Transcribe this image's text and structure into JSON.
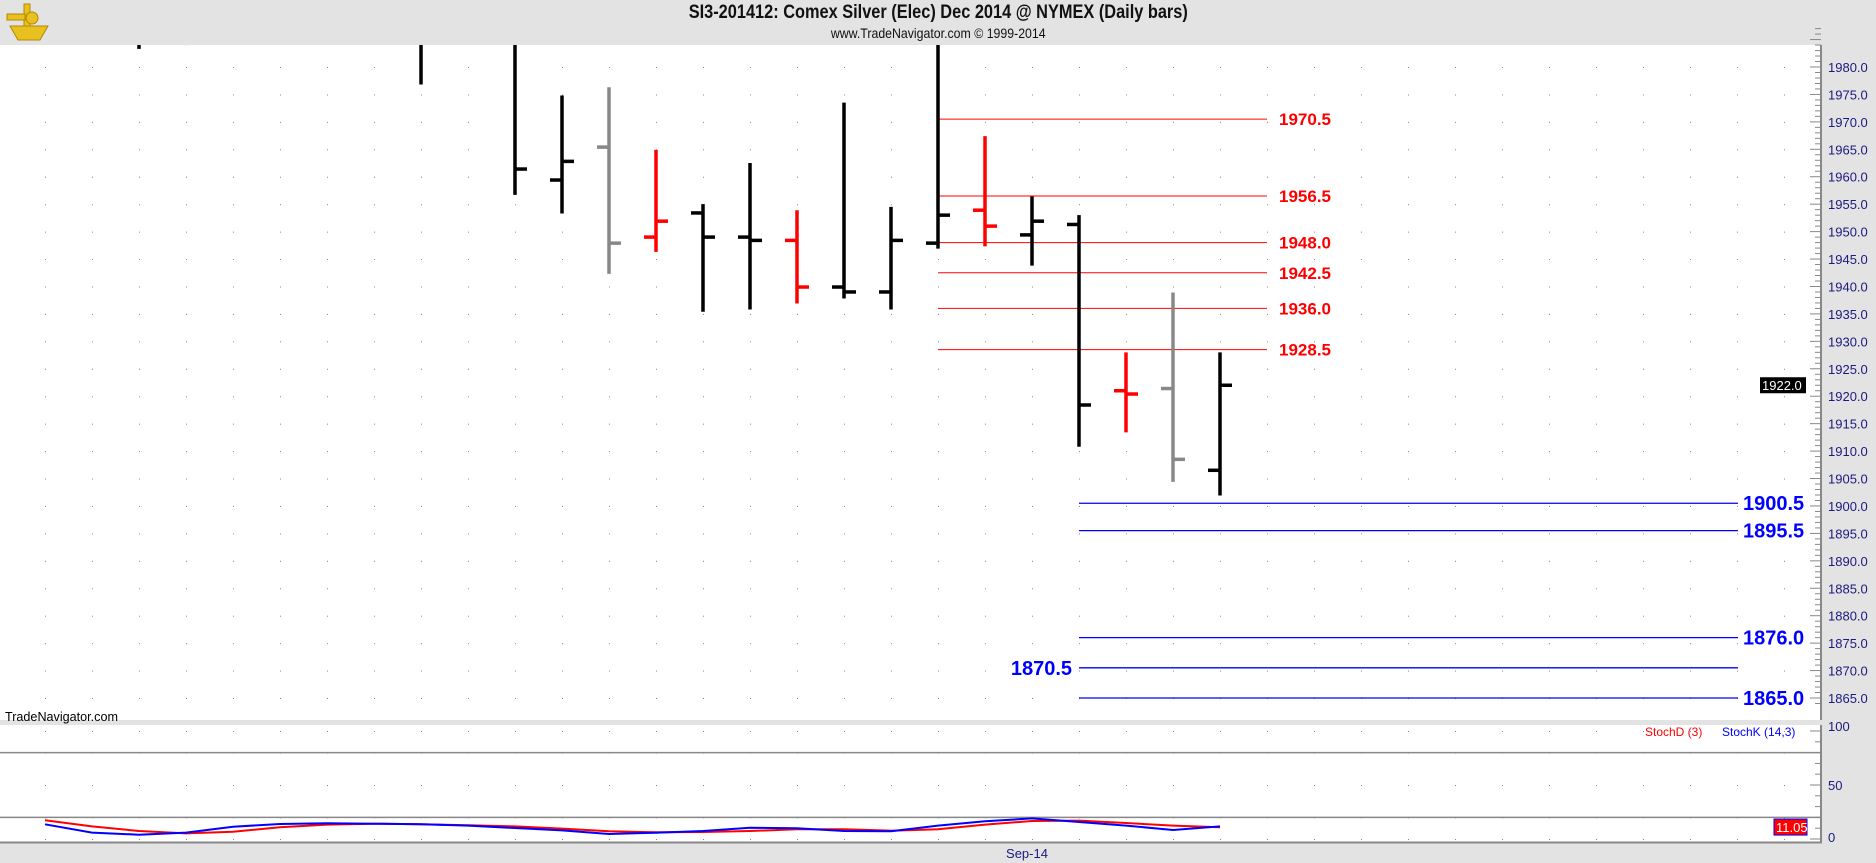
{
  "header": {
    "title": "SI3-201412:  Comex Silver (Elec) Dec 2014 @ NYMEX  (Daily bars)",
    "subtitle": "www.TradeNavigator.com © 1999-2014",
    "logo_icon": "sextant-icon"
  },
  "watermark": "TradeNavigator.com",
  "chart_data": [
    {
      "type": "ohlc-bar",
      "ylim": [
        1862,
        1987
      ],
      "y_ticks": [
        1980,
        1975,
        1970,
        1965,
        1960,
        1955,
        1950,
        1945,
        1940,
        1935,
        1930,
        1925,
        1920,
        1915,
        1910,
        1905,
        1900,
        1895,
        1890,
        1885,
        1880,
        1875,
        1870,
        1865
      ],
      "y_tick_labels": [
        "1980.0",
        "1975.0",
        "1970.0",
        "1965.0",
        "1960.0",
        "1955.0",
        "1950.0",
        "1945.0",
        "1940.0",
        "1935.0",
        "1930.0",
        "1925.0",
        "1920.0",
        "1915.0",
        "1910.0",
        "1905.0",
        "1900.0",
        "1895.0",
        "1890.0",
        "1885.0",
        "1880.0",
        "1875.0",
        "1870.0",
        "1865.0"
      ],
      "last_price": "1922.0",
      "grid": "dotted",
      "colors": {
        "up": "#000000",
        "down": "#ff0000",
        "neutral": "#888888"
      },
      "bars": [
        {
          "o": null,
          "h": 1990,
          "l": 1983.3,
          "c": null,
          "color": "#000000"
        },
        {
          "o": null,
          "h": 1990,
          "l": 1984.0,
          "c": null,
          "color": "#ff0000"
        },
        null,
        null,
        null,
        null,
        {
          "o": null,
          "h": 1990,
          "l": 1976.8,
          "c": null,
          "color": "#000000"
        },
        null,
        {
          "o": null,
          "h": 1990,
          "l": 1956.7,
          "c": 1961.4,
          "color": "#000000"
        },
        {
          "o": 1959.4,
          "h": 1974.8,
          "l": 1953.3,
          "c": 1962.8,
          "color": "#000000"
        },
        {
          "o": 1965.4,
          "h": 1976.3,
          "l": 1942.3,
          "c": 1947.9,
          "color": "#888888"
        },
        {
          "o": 1949.0,
          "h": 1964.9,
          "l": 1946.3,
          "c": 1951.9,
          "color": "#ff0000"
        },
        {
          "o": 1953.4,
          "h": 1955.0,
          "l": 1935.4,
          "c": 1949.0,
          "color": "#000000"
        },
        {
          "o": 1949.0,
          "h": 1962.5,
          "l": 1935.8,
          "c": 1948.4,
          "color": "#000000"
        },
        {
          "o": 1948.4,
          "h": 1953.9,
          "l": 1936.9,
          "c": 1939.9,
          "color": "#ff0000"
        },
        {
          "o": 1939.9,
          "h": 1973.5,
          "l": 1937.8,
          "c": 1939.0,
          "color": "#000000"
        },
        {
          "o": 1939.0,
          "h": 1954.5,
          "l": 1935.8,
          "c": 1948.4,
          "color": "#000000"
        },
        {
          "o": 1947.9,
          "h": 1990,
          "l": 1946.9,
          "c": 1953.0,
          "color": "#000000"
        },
        {
          "o": 1953.9,
          "h": 1967.4,
          "l": 1947.3,
          "c": 1951.0,
          "color": "#ff0000"
        },
        {
          "o": 1949.4,
          "h": 1956.4,
          "l": 1943.8,
          "c": 1951.9,
          "color": "#000000"
        },
        {
          "o": 1951.3,
          "h": 1953.0,
          "l": 1910.8,
          "c": 1918.4,
          "color": "#000000"
        },
        {
          "o": 1921.0,
          "h": 1928.0,
          "l": 1913.4,
          "c": 1920.4,
          "color": "#ff0000"
        },
        {
          "o": 1921.4,
          "h": 1938.9,
          "l": 1904.4,
          "c": 1908.5,
          "color": "#888888"
        },
        {
          "o": 1906.5,
          "h": 1928.0,
          "l": 1901.9,
          "c": 1922.0,
          "color": "#000000"
        }
      ],
      "resistance_levels": {
        "color": "#ff0000",
        "values": [
          1970.5,
          1956.5,
          1948.0,
          1942.5,
          1936.0,
          1928.5
        ],
        "labels": [
          "1970.5",
          "1956.5",
          "1948.0",
          "1942.5",
          "1936.0",
          "1928.5"
        ]
      },
      "support_levels": {
        "color": "#0000ff",
        "values": [
          1900.5,
          1895.5,
          1876.0,
          1870.5,
          1865.0
        ],
        "labels": [
          "1900.5",
          "1895.5",
          "1876.0",
          "1870.5",
          "1865.0"
        ],
        "label_side": [
          "right",
          "right",
          "right",
          "left",
          "right"
        ]
      }
    },
    {
      "type": "line",
      "ylim": [
        0,
        100
      ],
      "y_ticks": [
        100,
        50,
        0
      ],
      "y_tick_labels": [
        "100",
        "50",
        "0"
      ],
      "reference_lines": [
        80,
        20
      ],
      "x_label": "Sep-14",
      "last_value": "11.05",
      "legend": "top-right",
      "series": [
        {
          "name": "StochD (3)",
          "color": "#ff0000",
          "values": [
            17.3,
            11.7,
            7.4,
            5.2,
            6.8,
            10.8,
            13.3,
            14.2,
            13.6,
            12.7,
            11.7,
            9.6,
            7.1,
            6.2,
            6.5,
            7.4,
            9.0,
            9.0,
            7.7,
            9.0,
            13.3,
            16.7,
            17.0,
            14.8,
            12.4,
            10.8
          ]
        },
        {
          "name": "StochK (14,3)",
          "color": "#0000ff",
          "values": [
            13.6,
            5.9,
            4.0,
            5.9,
            11.4,
            13.9,
            14.5,
            14.2,
            13.6,
            12.4,
            10.2,
            8.0,
            4.6,
            5.8,
            7.4,
            10.5,
            9.9,
            7.4,
            7.1,
            12.4,
            16.4,
            19.1,
            15.7,
            12.4,
            8.3,
            11.7
          ]
        }
      ]
    }
  ]
}
